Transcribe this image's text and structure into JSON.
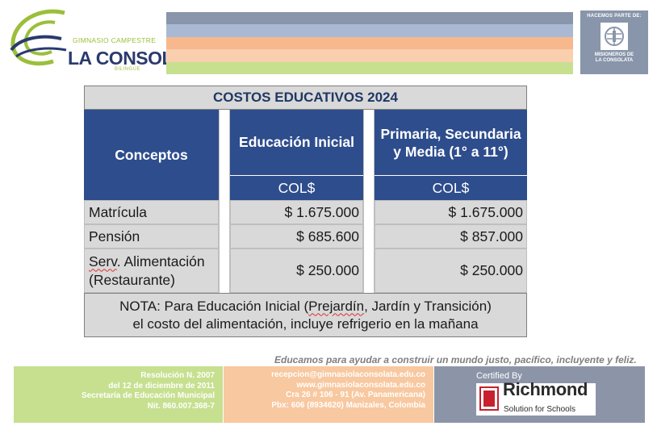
{
  "header": {
    "logo_small": "GIMNASIO CAMPESTRE",
    "logo_main": "LA CONSOLATA",
    "logo_bilingual": "BILINGÜE",
    "stripe_colors": [
      "#8895aa",
      "#a9b9d3",
      "#f6b88c",
      "#f9cfae",
      "#c6e08f"
    ],
    "badge_top": "HACEMOS PARTE DE:",
    "badge_line1": "MISIONEROS DE",
    "badge_line2": "LA CONSOLATA"
  },
  "table": {
    "title": "COSTOS EDUCATIVOS 2024",
    "columns": {
      "concepts": "Conceptos",
      "initial": "Educación Inicial",
      "primary_line1": "Primaria, Secundaria",
      "primary_line2": "y Media (1° a 11°)",
      "currency": "COL$"
    },
    "rows": [
      {
        "concept": "Matrícula",
        "initial": "$ 1.675.000",
        "primary": "$ 1.675.000"
      },
      {
        "concept": "Pensión",
        "initial": "$ 685.600",
        "primary": "$ 857.000"
      },
      {
        "concept_line1_a": "Serv",
        "concept_line1_b": ". Alimentación",
        "concept_line2": "(Restaurante)",
        "initial": "$ 250.000",
        "primary": "$ 250.000"
      }
    ],
    "note_line1_a": "NOTA: Para Educación Inicial (",
    "note_line1_b": "Prejardín",
    "note_line1_c": ", Jardín y Transición)",
    "note_line2": "el costo del alimentación, incluye refrigerio en la mañana"
  },
  "footer": {
    "slogan": "Educamos para ayudar a construir un mundo justo, pacífico, incluyente y feliz.",
    "legal": [
      "Resolución N. 2007",
      "del 12 de diciembre de 2011",
      "Secretaría de Educación Municipal",
      "Nit. 860.007.368-7"
    ],
    "contact": [
      "recepcion@gimnasiolaconsolata.edu.co",
      "www.gimnasiolaconsolata.edu.co",
      "Cra 26 # 106 - 91 (Av. Panamericana)",
      "Pbx: 606 (8934620) Manizales, Colombia"
    ],
    "certified": "Certified By",
    "richmond": "Richmond",
    "richmond_sub": "Solution for Schools"
  }
}
